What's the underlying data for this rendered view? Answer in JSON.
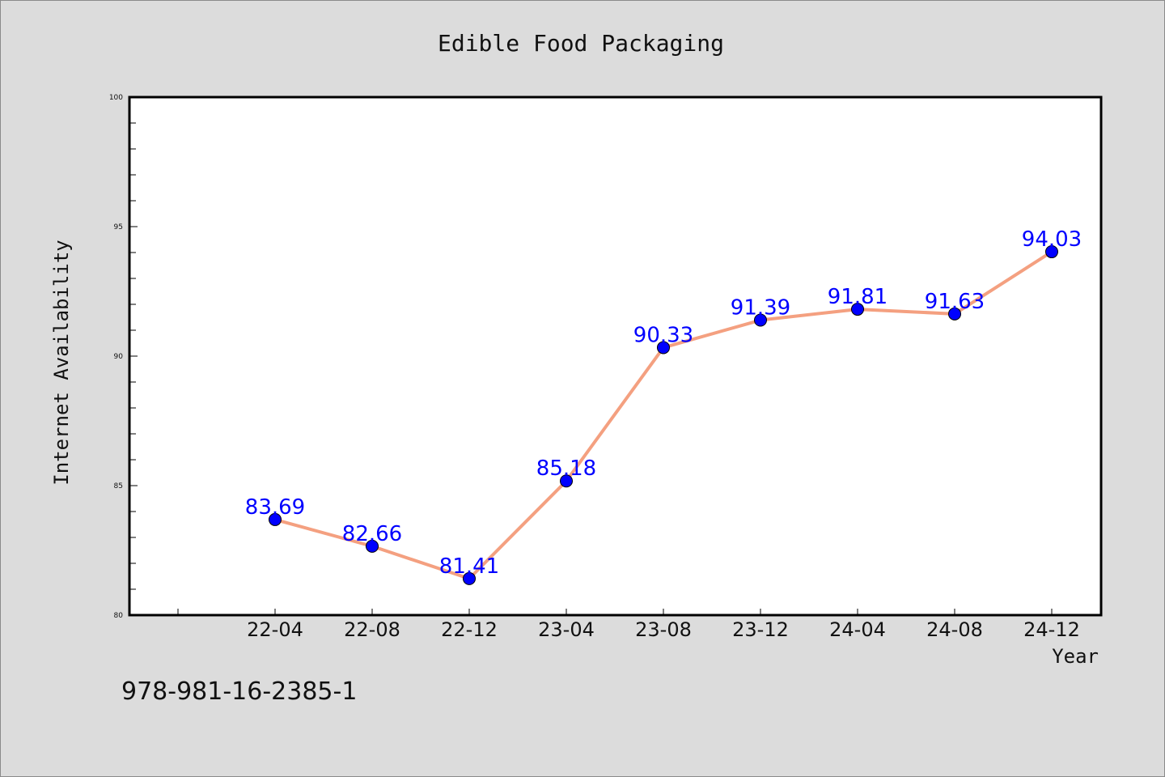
{
  "chart_data": {
    "type": "line",
    "title": "Edible Food Packaging",
    "xlabel": "Year",
    "ylabel": "Internet Availability",
    "categories": [
      "22-04",
      "22-08",
      "22-12",
      "23-04",
      "23-08",
      "23-12",
      "24-04",
      "24-08",
      "24-12"
    ],
    "series": [
      {
        "values": [
          83.69,
          82.66,
          81.41,
          85.18,
          90.33,
          91.39,
          91.81,
          91.63,
          94.03
        ],
        "line_color": "#f4a080",
        "marker_color": "#0000ff"
      }
    ],
    "value_labels": [
      "83.69",
      "82.66",
      "81.41",
      "85.18",
      "90.33",
      "91.39",
      "91.81",
      "91.63",
      "94.03"
    ],
    "ylim": [
      80,
      100
    ],
    "yticks": [
      80,
      85,
      90,
      95,
      100
    ],
    "grid": false,
    "legend": "none"
  },
  "footer": {
    "isbn": "978-981-16-2385-1"
  },
  "colors": {
    "background": "#dcdcdc",
    "plot_background": "#ffffff",
    "label_color": "#0000ff"
  }
}
